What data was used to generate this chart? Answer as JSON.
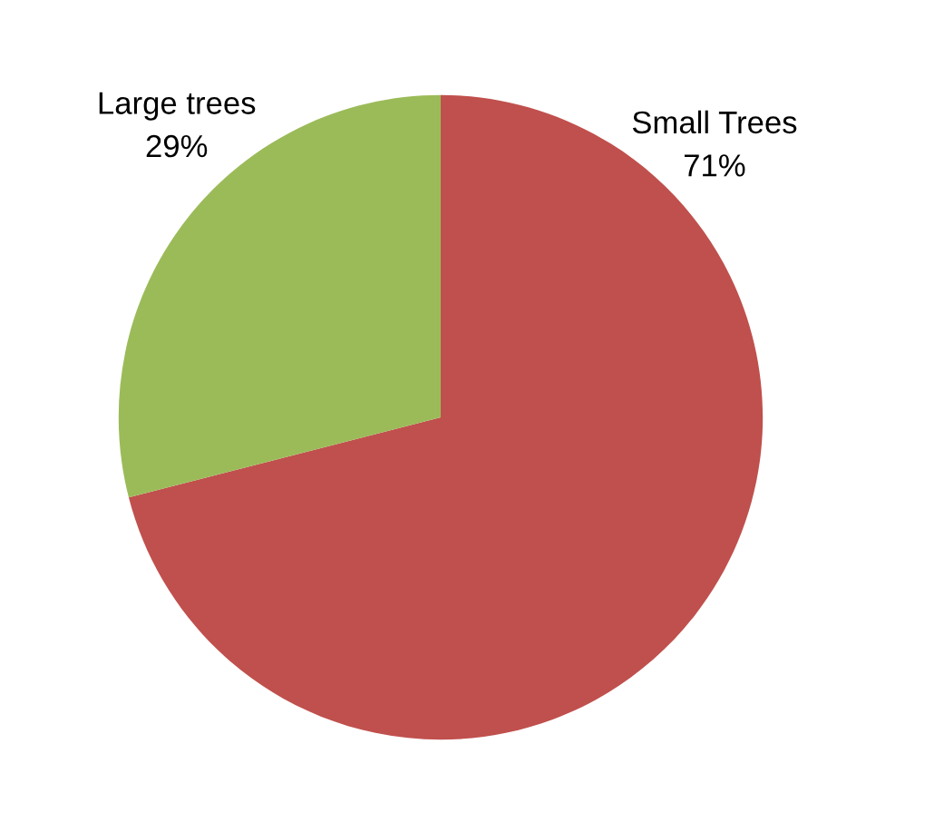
{
  "chart_data": {
    "type": "pie",
    "categories": [
      "Small Trees",
      "Large trees"
    ],
    "values": [
      71,
      29
    ],
    "value_labels": [
      "71%",
      "29%"
    ],
    "colors": [
      "#c0504d",
      "#9bbb59"
    ],
    "legend": false
  }
}
